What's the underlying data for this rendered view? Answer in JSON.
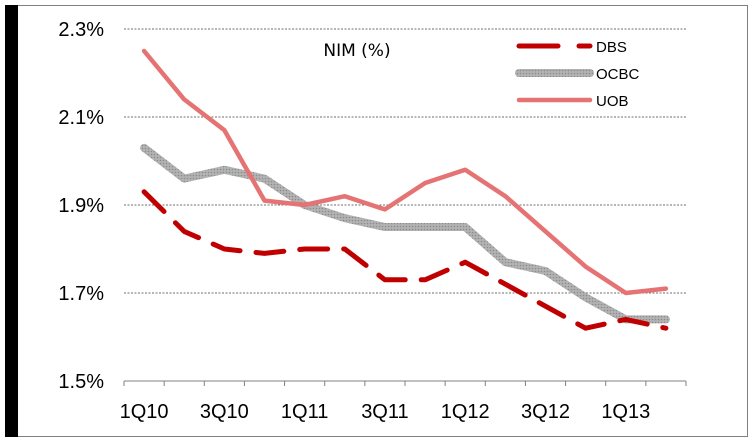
{
  "chart_data": {
    "type": "line",
    "title": "NIM (%)",
    "xlabel": "",
    "ylabel": "",
    "categories": [
      "1Q10",
      "2Q10",
      "3Q10",
      "4Q10",
      "1Q11",
      "2Q11",
      "3Q11",
      "4Q11",
      "1Q12",
      "2Q12",
      "3Q12",
      "4Q12",
      "1Q13",
      "2Q13"
    ],
    "x_tick_labels": [
      "1Q10",
      "3Q10",
      "1Q11",
      "3Q11",
      "1Q12",
      "3Q12",
      "1Q13"
    ],
    "y_tick_labels": [
      "2.3%",
      "2.1%",
      "1.9%",
      "1.7%",
      "1.5%"
    ],
    "y_ticks": [
      2.3,
      2.1,
      1.9,
      1.7,
      1.5
    ],
    "ylim": [
      1.5,
      2.3
    ],
    "grid": "horizontal dotted",
    "legend_position": "top-right",
    "series": [
      {
        "name": "DBS",
        "color": "#c00000",
        "style": "dashed",
        "values": [
          1.93,
          1.84,
          1.8,
          1.79,
          1.8,
          1.8,
          1.73,
          1.73,
          1.77,
          1.72,
          1.67,
          1.62,
          1.64,
          1.62
        ]
      },
      {
        "name": "OCBC",
        "color": "#a6a6a6",
        "style": "textured",
        "values": [
          2.03,
          1.96,
          1.98,
          1.96,
          1.9,
          1.87,
          1.85,
          1.85,
          1.85,
          1.77,
          1.75,
          1.69,
          1.64,
          1.64
        ]
      },
      {
        "name": "UOB",
        "color": "#e57373",
        "style": "solid",
        "values": [
          2.25,
          2.14,
          2.07,
          1.91,
          1.9,
          1.92,
          1.89,
          1.95,
          1.98,
          1.92,
          1.84,
          1.76,
          1.7,
          1.71
        ]
      }
    ]
  }
}
